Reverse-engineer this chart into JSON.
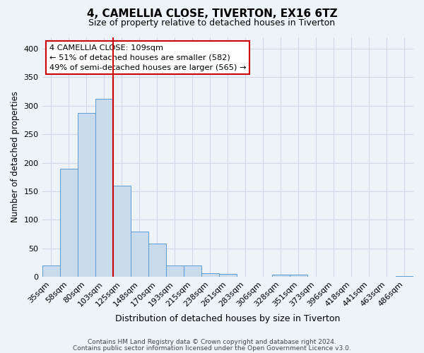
{
  "title": "4, CAMELLIA CLOSE, TIVERTON, EX16 6TZ",
  "subtitle": "Size of property relative to detached houses in Tiverton",
  "xlabel": "Distribution of detached houses by size in Tiverton",
  "ylabel": "Number of detached properties",
  "categories": [
    "35sqm",
    "58sqm",
    "80sqm",
    "103sqm",
    "125sqm",
    "148sqm",
    "170sqm",
    "193sqm",
    "215sqm",
    "238sqm",
    "261sqm",
    "283sqm",
    "306sqm",
    "328sqm",
    "351sqm",
    "373sqm",
    "396sqm",
    "418sqm",
    "441sqm",
    "463sqm",
    "486sqm"
  ],
  "values": [
    20,
    190,
    287,
    312,
    160,
    80,
    58,
    20,
    20,
    7,
    6,
    0,
    0,
    4,
    4,
    0,
    0,
    0,
    0,
    0,
    2
  ],
  "bar_color": "#c9daea",
  "bar_edge_color": "#5b9bd5",
  "background_color": "#eef2f9",
  "grid_color": "#d0d8e8",
  "vline_color": "#cc0000",
  "vline_pos": 3.5,
  "annotation_line1": "4 CAMELLIA CLOSE: 109sqm",
  "annotation_line2": "← 51% of detached houses are smaller (582)",
  "annotation_line3": "49% of semi-detached houses are larger (565) →",
  "annotation_box_edgecolor": "#cc0000",
  "annotation_box_facecolor": "#ffffff",
  "ylim": [
    0,
    420
  ],
  "yticks": [
    0,
    50,
    100,
    150,
    200,
    250,
    300,
    350,
    400
  ],
  "footnote1": "Contains HM Land Registry data © Crown copyright and database right 2024.",
  "footnote2": "Contains public sector information licensed under the Open Government Licence v3.0."
}
